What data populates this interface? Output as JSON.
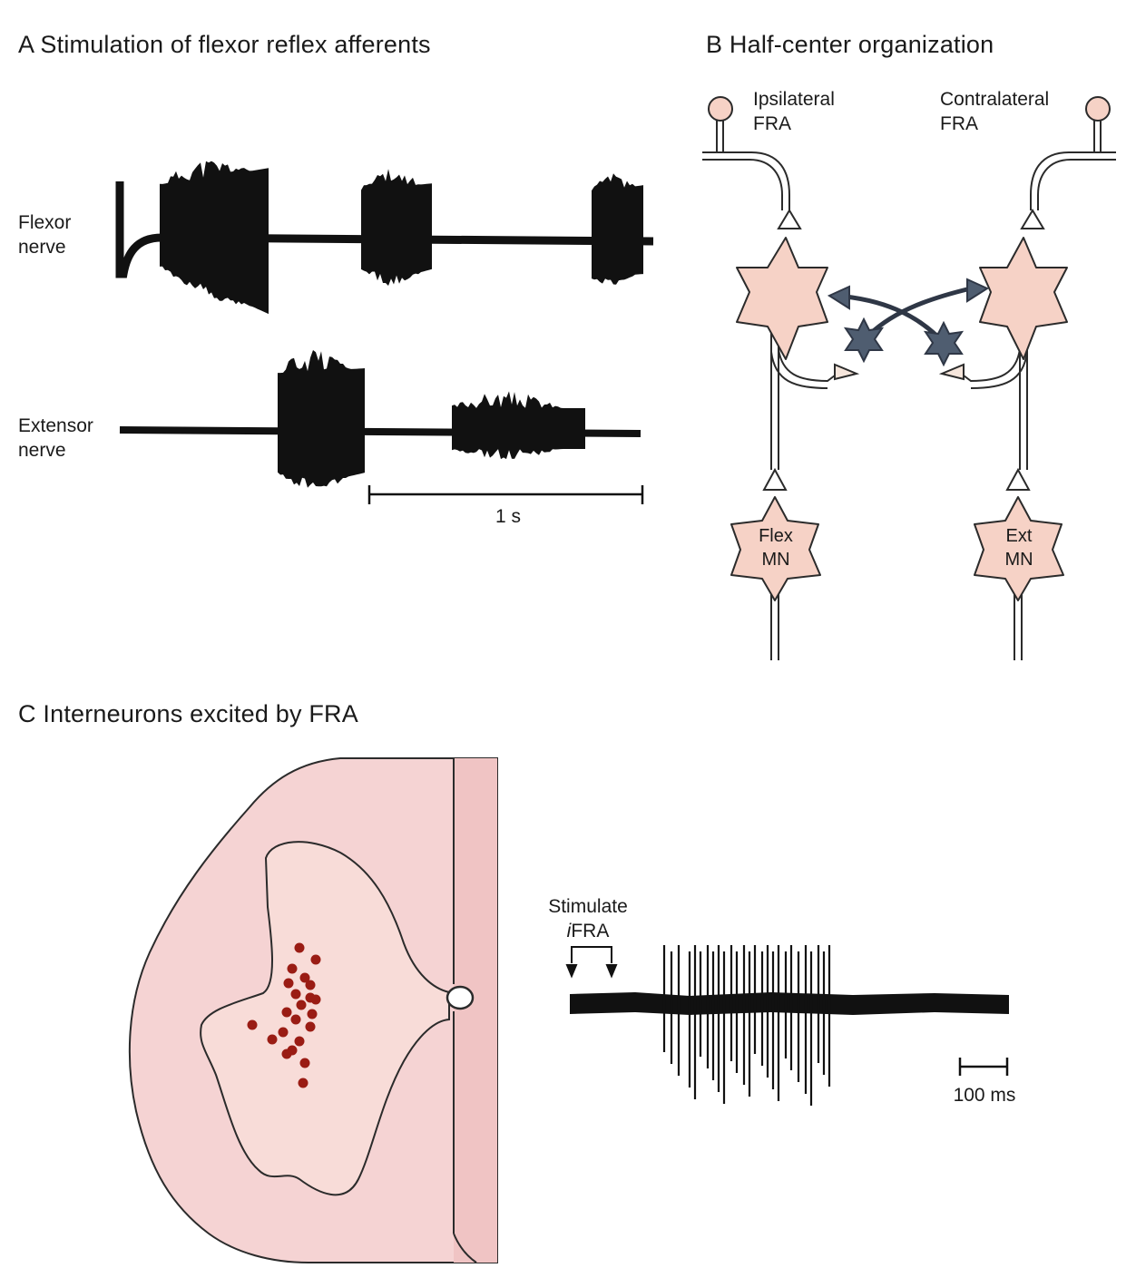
{
  "panel_a": {
    "title": "A  Stimulation of flexor reflex afferents",
    "flexor_line1": "Flexor",
    "flexor_line2": "nerve",
    "extensor_line1": "Extensor",
    "extensor_line2": "nerve",
    "scale_label": "1 s"
  },
  "panel_b": {
    "title": "B  Half-center organization",
    "ipsi_line1": "Ipsilateral",
    "ipsi_line2": "FRA",
    "contra_line1": "Contralateral",
    "contra_line2": "FRA",
    "flex_mn_line1": "Flex",
    "flex_mn_line2": "MN",
    "ext_mn_line1": "Ext",
    "ext_mn_line2": "MN"
  },
  "panel_c": {
    "title": "C  Interneurons excited by FRA",
    "stim_line1": "Stimulate",
    "stim_italic": "i",
    "stim_line2": "FRA",
    "scale_label": "100 ms"
  },
  "colors": {
    "neuron_fill": "#f6d2c6",
    "inhibitory_fill": "#4f5d70",
    "cord_fill": "#f5d3d3",
    "dot_color": "#9a1c14",
    "ink": "#111111"
  }
}
